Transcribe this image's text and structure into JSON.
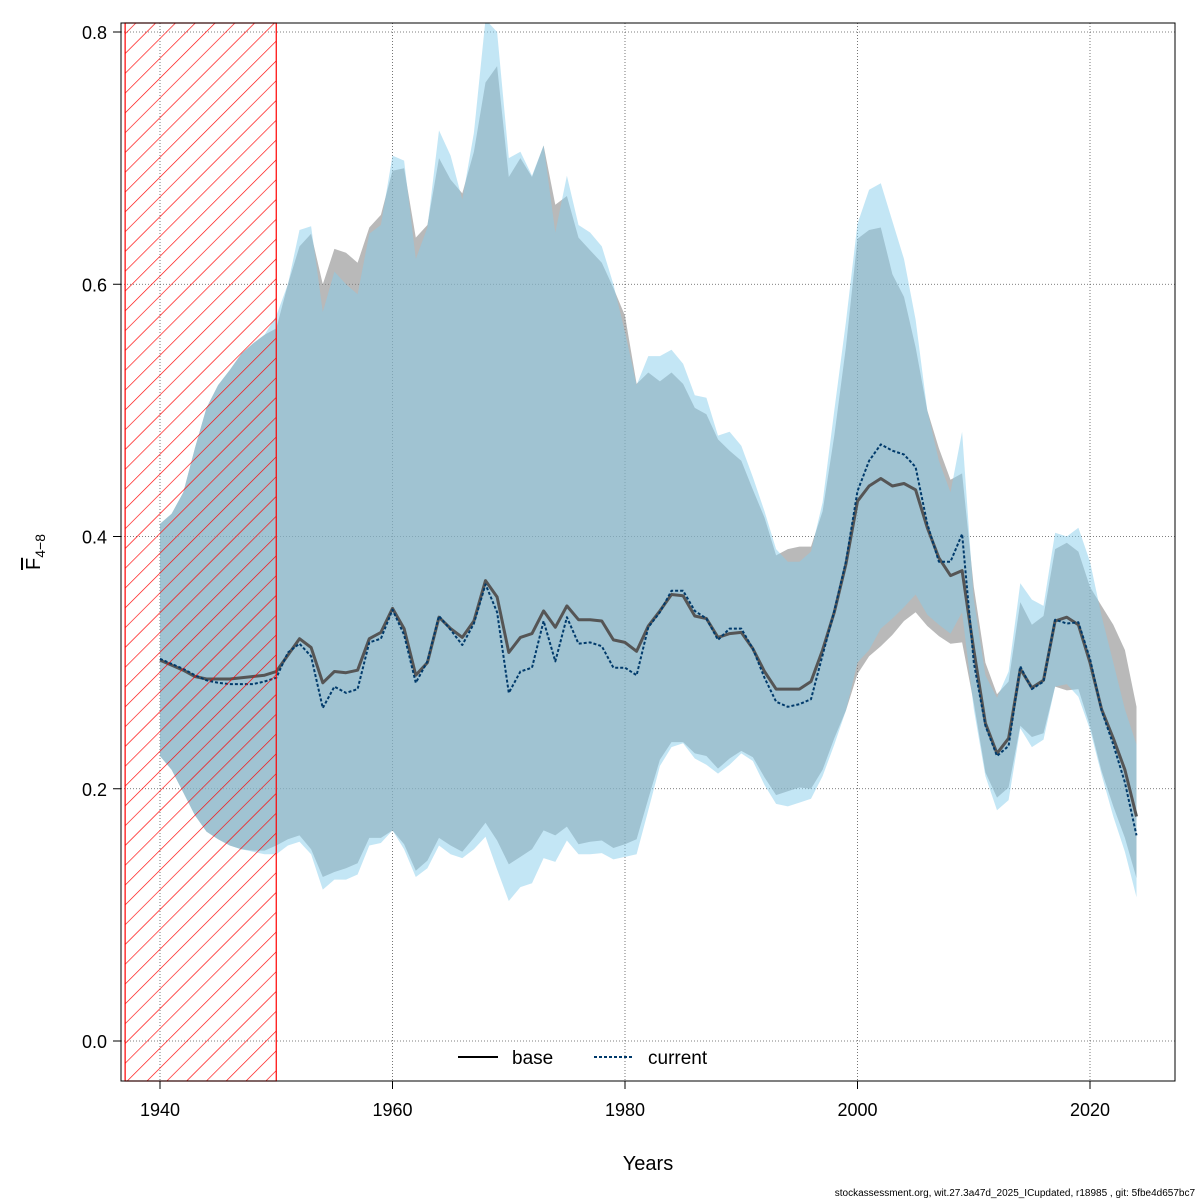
{
  "chart_data": {
    "type": "line",
    "xlabel": "Years",
    "ylabel_main": "F",
    "ylabel_sub": "4−8",
    "xlim": [
      1937,
      2025
    ],
    "ylim": [
      0,
      0.8
    ],
    "xticks": [
      "1940",
      "1960",
      "1980",
      "2000",
      "2020"
    ],
    "yticks": [
      "0.0",
      "0.2",
      "0.4",
      "0.6",
      "0.8"
    ],
    "grid": true,
    "legend_position": "bottom",
    "shaded_period": [
      1937,
      1950
    ],
    "colors": {
      "base_band": "#808080",
      "current_band": "#87ceeb",
      "base_line": "#000000",
      "current_line": "#003a6b",
      "hatch": "#ff0000"
    },
    "x": [
      1940,
      1941,
      1942,
      1943,
      1944,
      1945,
      1946,
      1947,
      1948,
      1949,
      1950,
      1951,
      1952,
      1953,
      1954,
      1955,
      1956,
      1957,
      1958,
      1959,
      1960,
      1961,
      1962,
      1963,
      1964,
      1965,
      1966,
      1967,
      1968,
      1969,
      1970,
      1971,
      1972,
      1973,
      1974,
      1975,
      1976,
      1977,
      1978,
      1979,
      1980,
      1981,
      1982,
      1983,
      1984,
      1985,
      1986,
      1987,
      1988,
      1989,
      1990,
      1991,
      1992,
      1993,
      1994,
      1995,
      1996,
      1997,
      1998,
      1999,
      2000,
      2001,
      2002,
      2003,
      2004,
      2005,
      2006,
      2007,
      2008,
      2009,
      2010,
      2011,
      2012,
      2013,
      2014,
      2015,
      2016,
      2017,
      2018,
      2019,
      2020,
      2021,
      2022,
      2023,
      2024
    ],
    "series": [
      {
        "name": "base",
        "values": [
          0.302,
          0.298,
          0.294,
          0.289,
          0.287,
          0.287,
          0.287,
          0.288,
          0.289,
          0.29,
          0.293,
          0.306,
          0.319,
          0.312,
          0.284,
          0.293,
          0.292,
          0.294,
          0.319,
          0.324,
          0.343,
          0.327,
          0.29,
          0.3,
          0.336,
          0.327,
          0.32,
          0.333,
          0.365,
          0.352,
          0.308,
          0.32,
          0.323,
          0.341,
          0.328,
          0.345,
          0.334,
          0.334,
          0.333,
          0.318,
          0.316,
          0.309,
          0.329,
          0.341,
          0.354,
          0.353,
          0.337,
          0.335,
          0.32,
          0.323,
          0.324,
          0.311,
          0.293,
          0.279,
          0.279,
          0.279,
          0.285,
          0.31,
          0.34,
          0.378,
          0.428,
          0.44,
          0.446,
          0.44,
          0.442,
          0.437,
          0.407,
          0.383,
          0.369,
          0.373,
          0.31,
          0.252,
          0.228,
          0.24,
          0.295,
          0.28,
          0.286,
          0.333,
          0.336,
          0.33,
          0.3,
          0.263,
          0.24,
          0.215,
          0.178
        ],
        "lower": [
          0.226,
          0.215,
          0.197,
          0.179,
          0.166,
          0.16,
          0.155,
          0.152,
          0.151,
          0.151,
          0.155,
          0.16,
          0.163,
          0.152,
          0.13,
          0.134,
          0.137,
          0.141,
          0.161,
          0.161,
          0.167,
          0.156,
          0.135,
          0.143,
          0.161,
          0.155,
          0.15,
          0.161,
          0.173,
          0.159,
          0.14,
          0.146,
          0.152,
          0.167,
          0.163,
          0.17,
          0.156,
          0.158,
          0.159,
          0.153,
          0.156,
          0.16,
          0.192,
          0.223,
          0.237,
          0.237,
          0.228,
          0.226,
          0.216,
          0.224,
          0.23,
          0.225,
          0.209,
          0.195,
          0.198,
          0.201,
          0.2,
          0.215,
          0.24,
          0.262,
          0.291,
          0.305,
          0.313,
          0.322,
          0.333,
          0.34,
          0.329,
          0.321,
          0.315,
          0.316,
          0.268,
          0.213,
          0.193,
          0.201,
          0.25,
          0.241,
          0.244,
          0.281,
          0.278,
          0.279,
          0.25,
          0.214,
          0.186,
          0.161,
          0.129
        ],
        "upper": [
          0.41,
          0.418,
          0.435,
          0.47,
          0.502,
          0.52,
          0.532,
          0.545,
          0.553,
          0.56,
          0.565,
          0.6,
          0.63,
          0.64,
          0.6,
          0.628,
          0.625,
          0.617,
          0.645,
          0.655,
          0.69,
          0.692,
          0.637,
          0.647,
          0.7,
          0.683,
          0.672,
          0.705,
          0.76,
          0.773,
          0.685,
          0.7,
          0.685,
          0.71,
          0.663,
          0.67,
          0.637,
          0.627,
          0.617,
          0.597,
          0.575,
          0.521,
          0.53,
          0.523,
          0.53,
          0.521,
          0.502,
          0.497,
          0.477,
          0.468,
          0.46,
          0.437,
          0.415,
          0.385,
          0.39,
          0.392,
          0.392,
          0.42,
          0.48,
          0.55,
          0.636,
          0.643,
          0.645,
          0.608,
          0.59,
          0.55,
          0.5,
          0.47,
          0.445,
          0.45,
          0.36,
          0.3,
          0.275,
          0.285,
          0.348,
          0.33,
          0.337,
          0.39,
          0.395,
          0.388,
          0.36,
          0.345,
          0.33,
          0.31,
          0.265
        ]
      },
      {
        "name": "current",
        "values": [
          0.303,
          0.299,
          0.295,
          0.29,
          0.286,
          0.284,
          0.283,
          0.283,
          0.283,
          0.285,
          0.288,
          0.308,
          0.315,
          0.305,
          0.264,
          0.281,
          0.276,
          0.279,
          0.316,
          0.319,
          0.342,
          0.322,
          0.284,
          0.301,
          0.337,
          0.326,
          0.314,
          0.331,
          0.362,
          0.34,
          0.276,
          0.293,
          0.296,
          0.333,
          0.301,
          0.336,
          0.315,
          0.316,
          0.313,
          0.296,
          0.296,
          0.29,
          0.328,
          0.34,
          0.357,
          0.357,
          0.341,
          0.335,
          0.318,
          0.327,
          0.327,
          0.311,
          0.288,
          0.269,
          0.265,
          0.267,
          0.271,
          0.306,
          0.341,
          0.38,
          0.436,
          0.46,
          0.473,
          0.468,
          0.465,
          0.455,
          0.41,
          0.38,
          0.38,
          0.402,
          0.3,
          0.25,
          0.226,
          0.234,
          0.297,
          0.279,
          0.285,
          0.334,
          0.331,
          0.332,
          0.303,
          0.262,
          0.235,
          0.205,
          0.163
        ],
        "lower": [
          0.226,
          0.215,
          0.197,
          0.179,
          0.166,
          0.16,
          0.155,
          0.152,
          0.15,
          0.148,
          0.148,
          0.155,
          0.158,
          0.148,
          0.12,
          0.128,
          0.128,
          0.132,
          0.155,
          0.157,
          0.167,
          0.152,
          0.13,
          0.137,
          0.155,
          0.148,
          0.145,
          0.152,
          0.162,
          0.136,
          0.111,
          0.122,
          0.125,
          0.145,
          0.142,
          0.159,
          0.148,
          0.148,
          0.149,
          0.144,
          0.146,
          0.148,
          0.183,
          0.218,
          0.233,
          0.236,
          0.224,
          0.219,
          0.212,
          0.219,
          0.228,
          0.222,
          0.203,
          0.188,
          0.186,
          0.189,
          0.192,
          0.21,
          0.235,
          0.262,
          0.3,
          0.31,
          0.327,
          0.335,
          0.344,
          0.354,
          0.338,
          0.33,
          0.323,
          0.34,
          0.263,
          0.21,
          0.183,
          0.191,
          0.248,
          0.233,
          0.239,
          0.281,
          0.283,
          0.273,
          0.247,
          0.211,
          0.178,
          0.15,
          0.114
        ],
        "upper": [
          0.41,
          0.418,
          0.435,
          0.47,
          0.502,
          0.52,
          0.532,
          0.545,
          0.553,
          0.56,
          0.575,
          0.6,
          0.643,
          0.646,
          0.578,
          0.61,
          0.6,
          0.592,
          0.64,
          0.647,
          0.702,
          0.698,
          0.62,
          0.645,
          0.722,
          0.702,
          0.667,
          0.72,
          0.81,
          0.8,
          0.7,
          0.705,
          0.686,
          0.71,
          0.641,
          0.686,
          0.647,
          0.641,
          0.63,
          0.6,
          0.562,
          0.52,
          0.543,
          0.543,
          0.548,
          0.537,
          0.512,
          0.51,
          0.48,
          0.483,
          0.472,
          0.447,
          0.42,
          0.39,
          0.38,
          0.38,
          0.388,
          0.427,
          0.5,
          0.57,
          0.648,
          0.675,
          0.68,
          0.65,
          0.62,
          0.572,
          0.5,
          0.46,
          0.435,
          0.483,
          0.35,
          0.29,
          0.272,
          0.293,
          0.363,
          0.35,
          0.345,
          0.403,
          0.4,
          0.407,
          0.38,
          0.337,
          0.3,
          0.263,
          0.235
        ]
      }
    ],
    "footer": "stockassessment.org, wit.27.3a47d_2025_ICupdated, r18985 , git: 5fbe4d657bc7"
  }
}
